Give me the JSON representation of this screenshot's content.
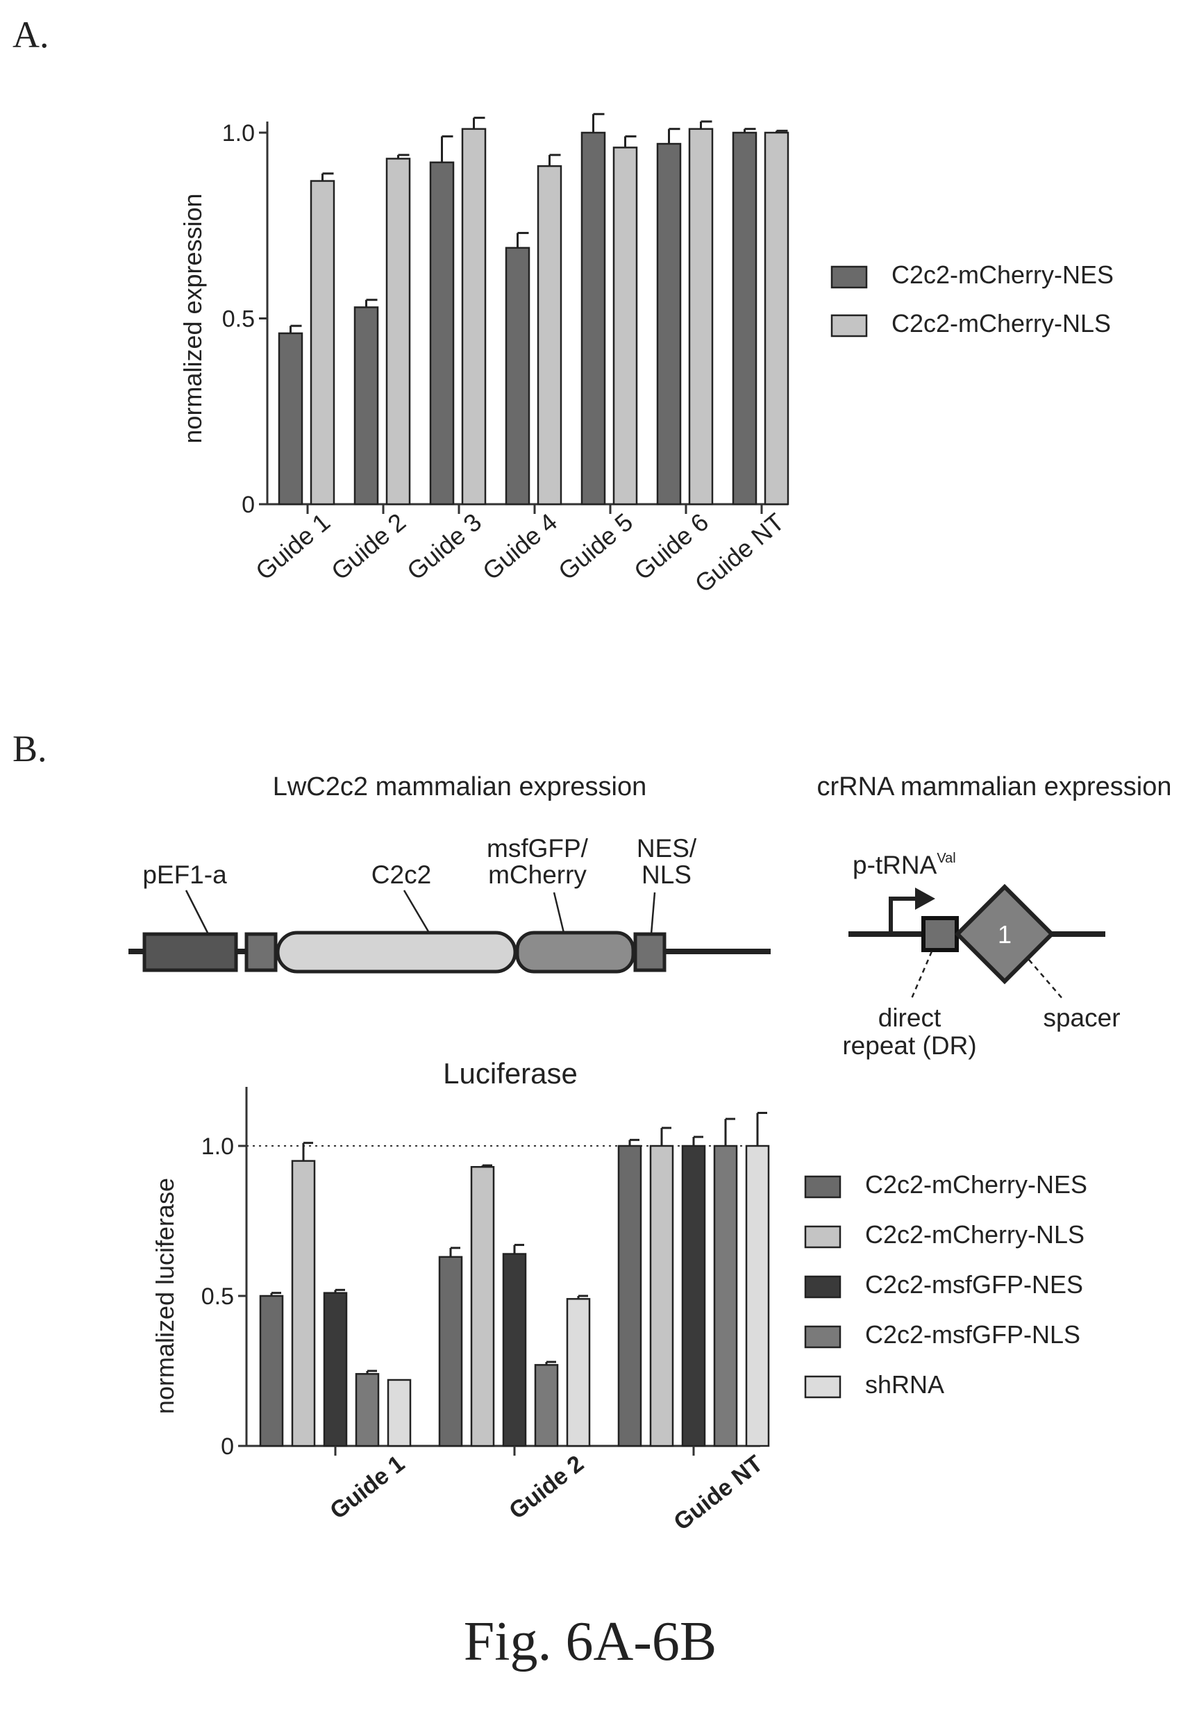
{
  "panel_a_label": "A.",
  "panel_b_label": "B.",
  "figure_caption": "Fig. 6A-6B",
  "colors": {
    "nes": "#6a6a6a",
    "nls": "#c4c4c4",
    "msf_nes": "#3a3a3a",
    "msf_nls": "#7a7a7a",
    "shrna": "#dcdcdc",
    "promoter": "#555555",
    "tag": "#707070",
    "c2c2": "#d4d4d4",
    "fp": "#8c8c8c",
    "dr": "#6f6f6f",
    "spacer": "#808080"
  },
  "diagram": {
    "lw_title": "LwC2c2 mammalian expression",
    "cr_title": "crRNA mammalian expression",
    "pef1a": "pEF1-a",
    "c2c2": "C2c2",
    "fp_line1": "msfGFP/",
    "fp_line2": "mCherry",
    "tag_line1": "NES/",
    "tag_line2": "NLS",
    "promoter_base": "p-tRNA",
    "promoter_sup": "Val",
    "spacer_number": "1",
    "dr_line1": "direct",
    "dr_line2": "repeat (DR)",
    "spacer_label": "spacer"
  },
  "chart_data": [
    {
      "type": "bar",
      "title": "",
      "ylabel": "normalized expression",
      "ylim": [
        0,
        1.0
      ],
      "yticks": [
        0,
        0.5,
        1.0
      ],
      "ytick_labels": [
        "0",
        "0.5",
        "1.0"
      ],
      "categories": [
        "Guide 1",
        "Guide 2",
        "Guide 3",
        "Guide 4",
        "Guide 5",
        "Guide 6",
        "Guide NT"
      ],
      "legend_position": "right",
      "series": [
        {
          "name": "C2c2-mCherry-NES",
          "values": [
            0.46,
            0.53,
            0.92,
            0.69,
            1.0,
            0.97,
            1.0
          ],
          "errors": [
            0.02,
            0.02,
            0.07,
            0.04,
            0.05,
            0.04,
            0.01
          ]
        },
        {
          "name": "C2c2-mCherry-NLS",
          "values": [
            0.87,
            0.93,
            1.01,
            0.91,
            0.96,
            1.01,
            1.0
          ],
          "errors": [
            0.02,
            0.01,
            0.03,
            0.03,
            0.03,
            0.02,
            0.005
          ]
        }
      ]
    },
    {
      "type": "bar",
      "title": "Luciferase",
      "ylabel": "normalized luciferase",
      "ylim": [
        0,
        1.0
      ],
      "yticks": [
        0,
        0.5,
        1.0
      ],
      "ytick_labels": [
        "0",
        "0.5",
        "1.0"
      ],
      "reference_line": 1.0,
      "categories": [
        "Guide 1",
        "Guide 2",
        "Guide NT"
      ],
      "legend_position": "right",
      "series": [
        {
          "name": "C2c2-mCherry-NES",
          "values": [
            0.5,
            0.63,
            1.0
          ],
          "errors": [
            0.01,
            0.03,
            0.02
          ]
        },
        {
          "name": "C2c2-mCherry-NLS",
          "values": [
            0.95,
            0.93,
            1.0
          ],
          "errors": [
            0.06,
            0.005,
            0.06
          ]
        },
        {
          "name": "C2c2-msfGFP-NES",
          "values": [
            0.51,
            0.64,
            1.0
          ],
          "errors": [
            0.01,
            0.03,
            0.03
          ]
        },
        {
          "name": "C2c2-msfGFP-NLS",
          "values": [
            0.24,
            0.27,
            1.0
          ],
          "errors": [
            0.01,
            0.01,
            0.09
          ]
        },
        {
          "name": "shRNA",
          "values": [
            0.22,
            0.49,
            1.0
          ],
          "errors": [
            0.0,
            0.01,
            0.11
          ]
        }
      ]
    }
  ]
}
